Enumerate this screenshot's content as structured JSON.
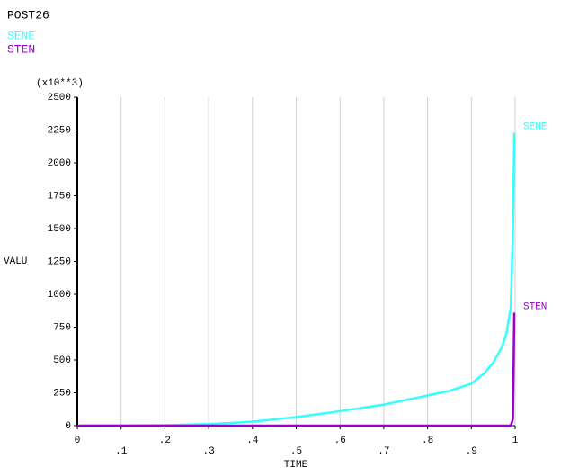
{
  "chart_data": {
    "type": "line",
    "title": "POST26",
    "unit_note": "(x10**3)",
    "xlabel": "TIME",
    "ylabel": "VALU",
    "xlim": [
      0,
      1
    ],
    "ylim": [
      0,
      2500
    ],
    "xticks": [
      0,
      {
        "value": 0.1,
        "label": ".1"
      },
      {
        "value": 0.2,
        "label": ".2"
      },
      {
        "value": 0.3,
        "label": ".3"
      },
      {
        "value": 0.4,
        "label": ".4"
      },
      {
        "value": 0.5,
        "label": ".5"
      },
      {
        "value": 0.6,
        "label": ".6"
      },
      {
        "value": 0.7,
        "label": ".7"
      },
      {
        "value": 0.8,
        "label": ".8"
      },
      {
        "value": 0.9,
        "label": ".9"
      },
      1
    ],
    "yticks": [
      0,
      250,
      500,
      750,
      1000,
      1250,
      1500,
      1750,
      2000,
      2250,
      2500
    ],
    "grid": "vertical",
    "series": [
      {
        "name": "SENE",
        "color": "#33ffff",
        "x": [
          0,
          0.1,
          0.2,
          0.3,
          0.4,
          0.5,
          0.6,
          0.7,
          0.8,
          0.85,
          0.9,
          0.93,
          0.95,
          0.97,
          0.98,
          0.99,
          0.995,
          0.998
        ],
        "values": [
          0,
          1,
          3,
          12,
          30,
          65,
          110,
          160,
          230,
          265,
          320,
          400,
          480,
          600,
          700,
          900,
          1500,
          2230
        ]
      },
      {
        "name": "STEN",
        "color": "#9900cc",
        "x": [
          0,
          0.5,
          0.9,
          0.99,
          0.995,
          0.998
        ],
        "values": [
          0,
          0,
          0,
          0,
          50,
          860
        ]
      }
    ]
  }
}
